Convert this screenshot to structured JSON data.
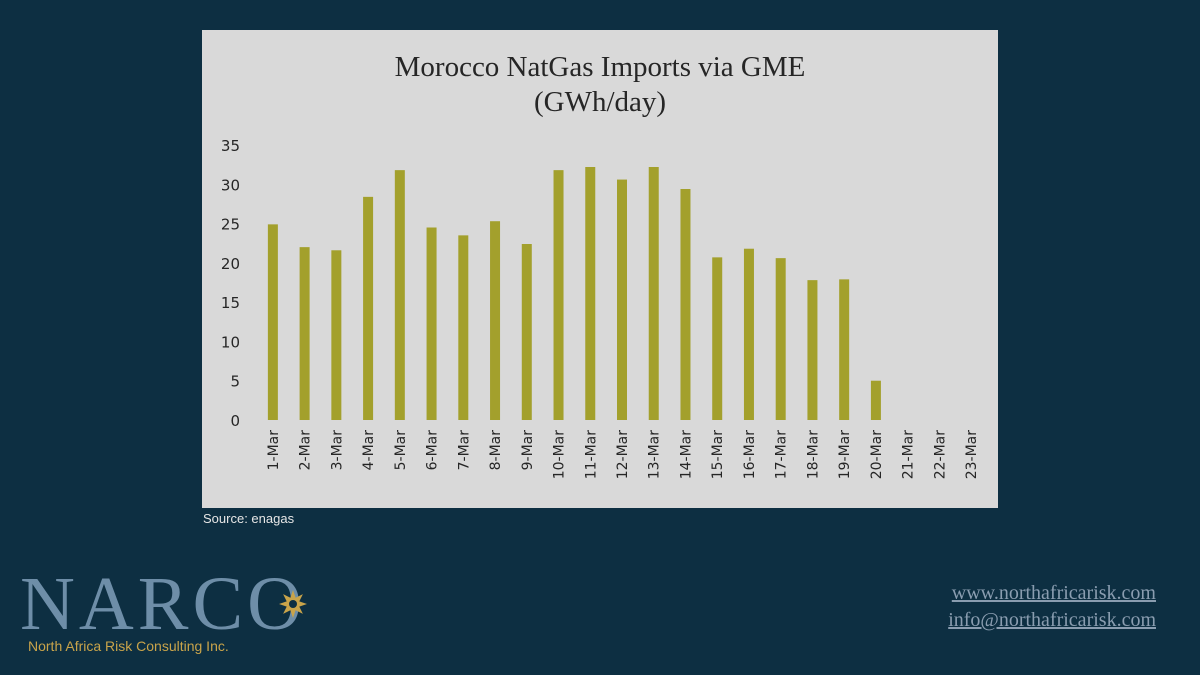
{
  "chart_data": {
    "type": "bar",
    "title": "Morocco NatGas Imports via GME",
    "subtitle": "(GWh/day)",
    "xlabel": "",
    "ylabel": "",
    "categories": [
      "1-Mar",
      "2-Mar",
      "3-Mar",
      "4-Mar",
      "5-Mar",
      "6-Mar",
      "7-Mar",
      "8-Mar",
      "9-Mar",
      "10-Mar",
      "11-Mar",
      "12-Mar",
      "13-Mar",
      "14-Mar",
      "15-Mar",
      "16-Mar",
      "17-Mar",
      "18-Mar",
      "19-Mar",
      "20-Mar",
      "21-Mar",
      "22-Mar",
      "23-Mar"
    ],
    "values": [
      24.9,
      22.0,
      21.6,
      28.4,
      31.8,
      24.5,
      23.5,
      25.3,
      22.4,
      31.8,
      32.2,
      30.6,
      32.2,
      29.4,
      20.7,
      21.8,
      20.6,
      17.8,
      17.9,
      5.0,
      0,
      0,
      0
    ],
    "ylim": [
      0,
      35
    ],
    "yticks": [
      0,
      5,
      10,
      15,
      20,
      25,
      30,
      35
    ],
    "grid": false,
    "legend": "none",
    "bar_color": "#a3a02c"
  },
  "source": "Source: enagas",
  "logo": {
    "wordmark": "NARCO",
    "tagline": "North Africa Risk Consulting Inc."
  },
  "contact": {
    "website": "www.northafricarisk.com",
    "email": "info@northafricarisk.com"
  }
}
